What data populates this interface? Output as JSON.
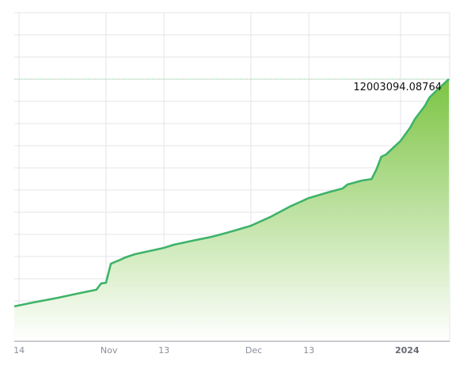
{
  "chart_data": {
    "type": "area",
    "title": "",
    "xlabel": "",
    "ylabel": "",
    "x_axis_type": "date",
    "xlim": [
      "2023-10-13",
      "2024-01-11"
    ],
    "ylim": [
      0,
      15050000
    ],
    "grid": true,
    "legend": "none",
    "colors": {
      "line": "#3db36a",
      "fill_top": "#7cc443",
      "fill_bottom": "#ffffff",
      "grid": "#e3e4ea",
      "marker_line": "#8fd6a0"
    },
    "x_ticks": [
      {
        "date": "2023-10-14",
        "label": "14",
        "bold": false
      },
      {
        "date": "2023-11-01",
        "label": "Nov",
        "bold": false
      },
      {
        "date": "2023-11-13",
        "label": "13",
        "bold": false
      },
      {
        "date": "2023-12-01",
        "label": "Dec",
        "bold": false
      },
      {
        "date": "2023-12-13",
        "label": "13",
        "bold": false
      },
      {
        "date": "2024-01-01",
        "label": "2024",
        "bold": true
      }
    ],
    "series": [
      {
        "x": [
          "2023-10-13",
          "2023-10-17",
          "2023-10-22",
          "2023-10-26",
          "2023-10-30",
          "2023-10-31",
          "2023-11-01",
          "2023-11-02",
          "2023-11-04",
          "2023-11-05",
          "2023-11-07",
          "2023-11-13",
          "2023-11-15",
          "2023-11-19",
          "2023-11-23",
          "2023-11-26",
          "2023-12-01",
          "2023-12-05",
          "2023-12-09",
          "2023-12-13",
          "2023-12-17",
          "2023-12-20",
          "2023-12-21",
          "2023-12-24",
          "2023-12-26",
          "2023-12-27",
          "2023-12-28",
          "2023-12-29",
          "2024-01-01",
          "2024-01-03",
          "2024-01-04",
          "2024-01-06",
          "2024-01-07",
          "2024-01-09",
          "2024-01-11"
        ],
        "y": [
          1600000,
          1780000,
          1990000,
          2180000,
          2360000,
          2650000,
          2680000,
          3550000,
          3740000,
          3840000,
          3990000,
          4280000,
          4420000,
          4610000,
          4790000,
          4970000,
          5290000,
          5690000,
          6160000,
          6560000,
          6820000,
          7000000,
          7180000,
          7360000,
          7430000,
          7870000,
          8450000,
          8560000,
          9180000,
          9790000,
          10190000,
          10770000,
          11170000,
          11600000,
          12003094.08764
        ]
      }
    ],
    "annotations": [
      {
        "label": "12003094.08764",
        "value": 12003094.08764
      }
    ]
  }
}
